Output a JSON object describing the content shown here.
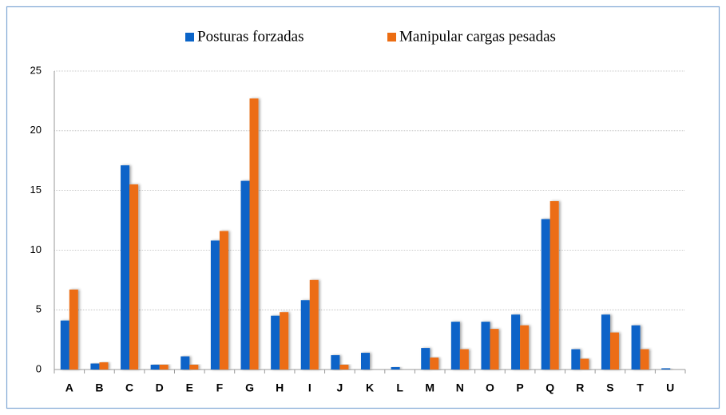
{
  "chart_data": {
    "type": "bar",
    "categories": [
      "A",
      "B",
      "C",
      "D",
      "E",
      "F",
      "G",
      "H",
      "I",
      "J",
      "K",
      "L",
      "M",
      "N",
      "O",
      "P",
      "Q",
      "R",
      "S",
      "T",
      "U"
    ],
    "series": [
      {
        "name": "Posturas forzadas",
        "color": "#0a64c8",
        "values": [
          4.1,
          0.5,
          17.1,
          0.4,
          1.1,
          10.8,
          15.8,
          4.5,
          5.8,
          1.2,
          1.4,
          0.2,
          1.8,
          4.0,
          4.0,
          4.6,
          12.6,
          1.7,
          4.6,
          3.7,
          0.1
        ]
      },
      {
        "name": "Manipular cargas pesadas",
        "color": "#ec6d12",
        "values": [
          6.7,
          0.6,
          15.5,
          0.4,
          0.4,
          11.6,
          22.7,
          4.8,
          7.5,
          0.4,
          0,
          0,
          1.0,
          1.7,
          3.4,
          3.7,
          14.1,
          0.9,
          3.1,
          1.7,
          0
        ]
      }
    ],
    "ylim": [
      0,
      25
    ],
    "yticks": [
      0,
      5,
      10,
      15,
      20,
      25
    ],
    "grid": true,
    "legend": "top"
  }
}
